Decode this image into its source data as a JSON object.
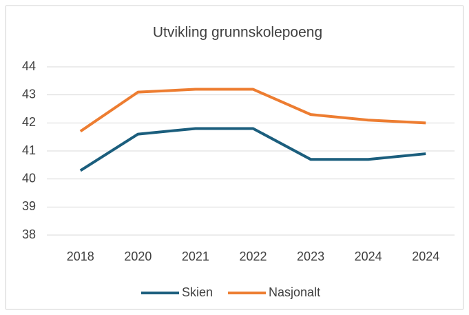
{
  "chart_data": {
    "type": "line",
    "title": "Utvikling grunnskolepoeng",
    "categories": [
      "2018",
      "2020",
      "2021",
      "2022",
      "2023",
      "2024",
      "2024"
    ],
    "series": [
      {
        "name": "Skien",
        "color": "#1b5e7d",
        "values": [
          40.3,
          41.6,
          41.8,
          41.8,
          40.7,
          40.7,
          40.9
        ]
      },
      {
        "name": "Nasjonalt",
        "color": "#ed7d31",
        "values": [
          41.7,
          43.1,
          43.2,
          43.2,
          42.3,
          42.1,
          42.0
        ]
      }
    ],
    "ylim": [
      38,
      44
    ],
    "yticks": [
      38,
      39,
      40,
      41,
      42,
      43,
      44
    ],
    "grid": true,
    "legend": "bottom"
  }
}
